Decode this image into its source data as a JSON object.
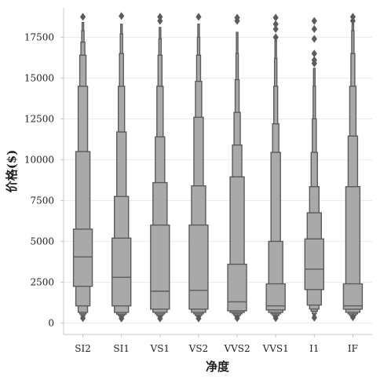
{
  "chart_data": {
    "type": "boxen",
    "title": "",
    "xlabel": "净度",
    "ylabel": "价格($)",
    "ylim": [
      -700,
      19300
    ],
    "yticks": [
      0,
      2500,
      5000,
      7500,
      10000,
      12500,
      15000,
      17500
    ],
    "grid": true,
    "colors": {
      "box_fill": "#a9a9a9",
      "line": "#5b5b5b",
      "grid": "#ebebeb",
      "axis": "#c8c8c8"
    },
    "categories": [
      "SI2",
      "SI1",
      "VS1",
      "VS2",
      "VVS2",
      "VVS1",
      "I1",
      "IF"
    ],
    "series": [
      {
        "category": "SI2",
        "median": 4050,
        "levels": [
          [
            2250,
            5750
          ],
          [
            1050,
            10500
          ],
          [
            660,
            14500
          ],
          [
            560,
            16400
          ],
          [
            460,
            17200
          ],
          [
            400,
            17900
          ],
          [
            360,
            18400
          ]
        ],
        "outliers": [
          300,
          18750
        ]
      },
      {
        "category": "SI1",
        "median": 2800,
        "levels": [
          [
            1050,
            5200
          ],
          [
            650,
            7750
          ],
          [
            540,
            11700
          ],
          [
            460,
            14500
          ],
          [
            390,
            16500
          ],
          [
            360,
            17700
          ],
          [
            340,
            18300
          ]
        ],
        "outliers": [
          280,
          18800
        ]
      },
      {
        "category": "VS1",
        "median": 1950,
        "levels": [
          [
            850,
            6000
          ],
          [
            660,
            8600
          ],
          [
            560,
            11400
          ],
          [
            460,
            14500
          ],
          [
            400,
            16400
          ],
          [
            360,
            17400
          ],
          [
            340,
            18100
          ]
        ],
        "outliers": [
          280,
          18500,
          18750
        ]
      },
      {
        "category": "VS2",
        "median": 2000,
        "levels": [
          [
            850,
            6000
          ],
          [
            660,
            8400
          ],
          [
            560,
            12600
          ],
          [
            460,
            14800
          ],
          [
            400,
            16400
          ],
          [
            360,
            17500
          ],
          [
            340,
            18300
          ]
        ],
        "outliers": [
          280,
          18750
        ]
      },
      {
        "category": "VVS2",
        "median": 1300,
        "levels": [
          [
            750,
            3600
          ],
          [
            650,
            8950
          ],
          [
            560,
            10900
          ],
          [
            460,
            12900
          ],
          [
            400,
            14900
          ],
          [
            360,
            16500
          ],
          [
            340,
            17800
          ]
        ],
        "outliers": [
          300,
          18500,
          18700
        ]
      },
      {
        "category": "VVS1",
        "median": 1050,
        "levels": [
          [
            800,
            2400
          ],
          [
            650,
            5000
          ],
          [
            560,
            10450
          ],
          [
            460,
            12200
          ],
          [
            400,
            14500
          ],
          [
            360,
            16200
          ],
          [
            340,
            17300
          ]
        ],
        "outliers": [
          300,
          17500,
          18000,
          18300,
          18700
        ]
      },
      {
        "category": "I1",
        "median": 3300,
        "levels": [
          [
            2050,
            5150
          ],
          [
            1100,
            6750
          ],
          [
            860,
            8350
          ],
          [
            720,
            10450
          ],
          [
            580,
            12500
          ],
          [
            480,
            14500
          ],
          [
            400,
            15600
          ]
        ],
        "outliers": [
          330,
          15900,
          16100,
          16500,
          17400,
          18000,
          18500
        ]
      },
      {
        "category": "IF",
        "median": 1050,
        "levels": [
          [
            850,
            2400
          ],
          [
            660,
            8350
          ],
          [
            560,
            11450
          ],
          [
            460,
            14500
          ],
          [
            400,
            16500
          ],
          [
            360,
            17900
          ],
          [
            340,
            18300
          ]
        ],
        "outliers": [
          350,
          18500,
          18750
        ]
      }
    ]
  }
}
